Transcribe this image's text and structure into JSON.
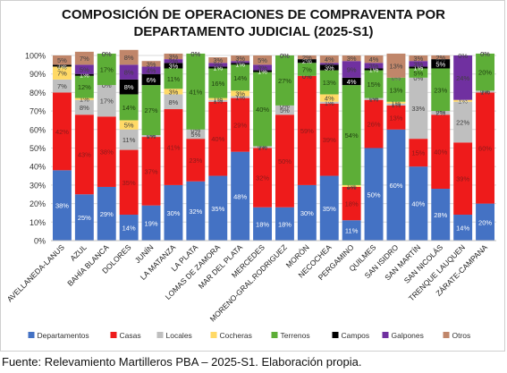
{
  "chart_data": {
    "type": "bar",
    "stacked": true,
    "title_lines": [
      "COMPOSICIÓN DE OPERACIONES DE COMPRAVENTA POR",
      "DEPARTAMENTO JUDICIAL (2025-S1)"
    ],
    "xlabel": "",
    "ylabel": "",
    "ylim": [
      0,
      100
    ],
    "yticks": [
      "0%",
      "10%",
      "20%",
      "30%",
      "40%",
      "50%",
      "60%",
      "70%",
      "80%",
      "90%",
      "100%"
    ],
    "grid": true,
    "legend_position": "bottom",
    "categories": [
      "AVELLANEDA-LANUS",
      "AZUL",
      "BAHÍA BLANCA",
      "DOLORES",
      "JUNÍN",
      "LA MATANZA",
      "LA PLATA",
      "LOMAS DE ZAMORA",
      "MAR DEL PLATA",
      "MERCEDES",
      "MORENO-GRAL.RODRIGUEZ",
      "MORÓN",
      "NECOCHEA",
      "PERGAMINO",
      "QUILMES",
      "SAN ISIDRO",
      "SAN MARTÍN",
      "SAN NICOLÁS",
      "TRENQUE LAUQUEN",
      "ZÁRATE-CAMPANA"
    ],
    "series": [
      {
        "name": "Departamentos",
        "color": "#4472C4",
        "label_color": "#ffffff",
        "values": [
          38,
          25,
          29,
          14,
          19,
          30,
          32,
          35,
          48,
          18,
          18,
          30,
          35,
          11,
          50,
          60,
          40,
          28,
          14,
          20
        ],
        "labels": [
          "38%",
          "25%",
          "29%",
          "14%",
          "19%",
          "30%",
          "32%",
          "35%",
          "48%",
          "18%",
          "18%",
          "30%",
          "35%",
          "11%",
          "50%",
          "60%",
          "40%",
          "28%",
          "14%",
          "20%"
        ]
      },
      {
        "name": "Casas",
        "color": "#EE1B1B",
        "label_color": "#8B1A1A",
        "values": [
          42,
          43,
          38,
          35,
          37,
          41,
          23,
          40,
          29,
          32,
          50,
          59,
          39,
          18,
          26,
          13,
          15,
          40,
          39,
          60
        ],
        "labels": [
          "42%",
          "43%",
          "38%",
          "35%",
          "37%",
          "41%",
          "23%",
          "40%",
          "29%",
          "32%",
          "50%",
          "59%",
          "39%",
          "18%",
          "26%",
          "13%",
          "15%",
          "40%",
          "39%",
          "60%"
        ]
      },
      {
        "name": "Locales",
        "color": "#BFBFBF",
        "label_color": "#404040",
        "values": [
          7,
          8,
          17,
          11,
          1,
          8,
          5,
          1,
          1,
          1,
          5,
          0,
          1,
          0,
          1,
          1,
          33,
          2,
          22,
          1
        ],
        "labels": [
          "7%",
          "8%",
          "17%",
          "11%",
          "1%",
          "8%",
          "5%",
          "1%",
          "1%",
          "1%",
          "5%",
          "0%",
          "1%",
          "0%",
          "1%",
          "1%",
          "33%",
          "2%",
          "22%",
          "1%"
        ]
      },
      {
        "name": "Cocheras",
        "color": "#FFD966",
        "label_color": "#404040",
        "values": [
          7,
          1,
          0,
          5,
          0,
          3,
          0,
          1,
          3,
          0,
          0,
          0,
          4,
          1,
          0,
          1,
          0,
          0,
          1,
          0
        ],
        "labels": [
          "7%",
          "1%",
          "0%",
          "5%",
          "0%",
          "3%",
          "0%",
          "1%",
          "3%",
          "0%",
          "0%",
          "0%",
          "4%",
          "1%",
          "0%",
          "1%",
          "0%",
          "0%",
          "1%",
          "0%"
        ]
      },
      {
        "name": "Terrenos",
        "color": "#5DAE37",
        "label_color": "#1E3F10",
        "values": [
          0,
          12,
          17,
          14,
          27,
          11,
          41,
          16,
          14,
          40,
          27,
          7,
          13,
          54,
          15,
          13,
          5,
          23,
          0,
          20
        ],
        "labels": [
          "0%",
          "12%",
          "17%",
          "14%",
          "27%",
          "11%",
          "41%",
          "16%",
          "14%",
          "40%",
          "27%",
          "7%",
          "13%",
          "54%",
          "15%",
          "13%",
          "5%",
          "23%",
          "0%",
          "20%"
        ]
      },
      {
        "name": "Campos",
        "color": "#000000",
        "label_color": "#ffffff",
        "values": [
          1,
          1,
          0,
          8,
          6,
          3,
          0,
          1,
          1,
          1,
          0,
          2,
          3,
          4,
          1,
          0,
          1,
          5,
          0,
          0
        ],
        "labels": [
          "1%",
          "1%",
          "0%",
          "8%",
          "6%",
          "3%",
          "0%",
          "1%",
          "1%",
          "1%",
          "0%",
          "2%",
          "3%",
          "4%",
          "1%",
          "0%",
          "1%",
          "5%",
          "0%",
          "0%"
        ]
      },
      {
        "name": "Galpones",
        "color": "#7030A0",
        "label_color": "#404040",
        "values": [
          0,
          5,
          0,
          8,
          4,
          2,
          0,
          2,
          1,
          3,
          0,
          0,
          1,
          9,
          3,
          0,
          3,
          0,
          24,
          0
        ],
        "labels": [
          "0%",
          "5%",
          "0%",
          "8%",
          "4%",
          "2%",
          "0%",
          "2%",
          "1%",
          "3%",
          "0%",
          "0%",
          "1%",
          "9%",
          "3%",
          "0%",
          "3%",
          "0%",
          "24%",
          "0%"
        ]
      },
      {
        "name": "Otros",
        "color": "#C0866A",
        "label_color": "#404040",
        "values": [
          5,
          7,
          0,
          8,
          3,
          3,
          0,
          3,
          3,
          5,
          0,
          2,
          4,
          3,
          4,
          13,
          3,
          2,
          0,
          0
        ],
        "labels": [
          "5%",
          "7%",
          "0%",
          "8%",
          "3%",
          "3%",
          "0%",
          "3%",
          "3%",
          "5%",
          "0%",
          "2%",
          "4%",
          "3%",
          "4%",
          "13%",
          "3%",
          "2%",
          "0%",
          "0%"
        ]
      }
    ]
  },
  "source_note": "Fuente: Relevamiento Martilleros PBA – 2025-S1. Elaboración propia."
}
